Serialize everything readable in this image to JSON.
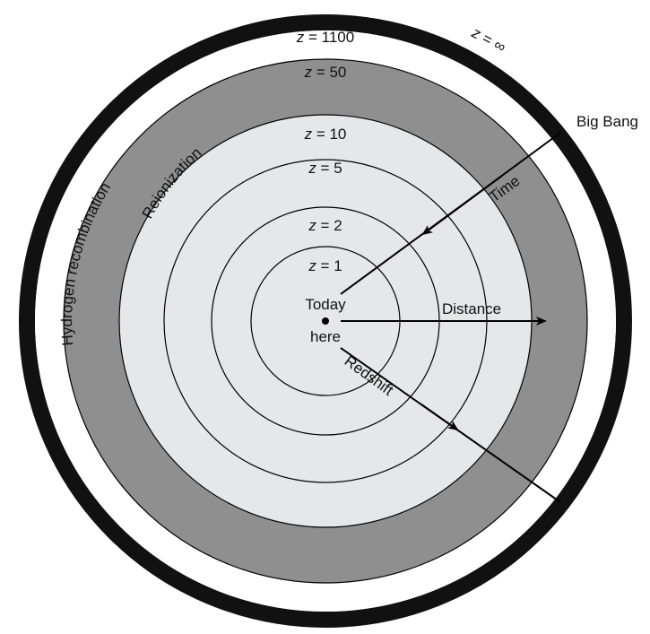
{
  "diagram": {
    "center_text_top": "Today",
    "center_text_bottom": "here",
    "edge_label": "Big Bang",
    "arrows": {
      "time": "Time",
      "distance": "Distance",
      "redshift": "Redshift"
    },
    "eras": {
      "recombination": "Hydrogen recombination",
      "reionization": "Reionization"
    },
    "z_labels": {
      "z_inf": "∞",
      "z_1100": "1100",
      "z_50": "50",
      "z_10": "10",
      "z_5": "5",
      "z_2": "2",
      "z_1": "1"
    },
    "z_symbol": "z",
    "equals": " = ",
    "colors": {
      "outer_ring": "#111111",
      "reionization_band": "#8f8f8f",
      "inner_disk": "#e6e7e8",
      "lines": "#000000",
      "background": "#ffffff"
    }
  }
}
